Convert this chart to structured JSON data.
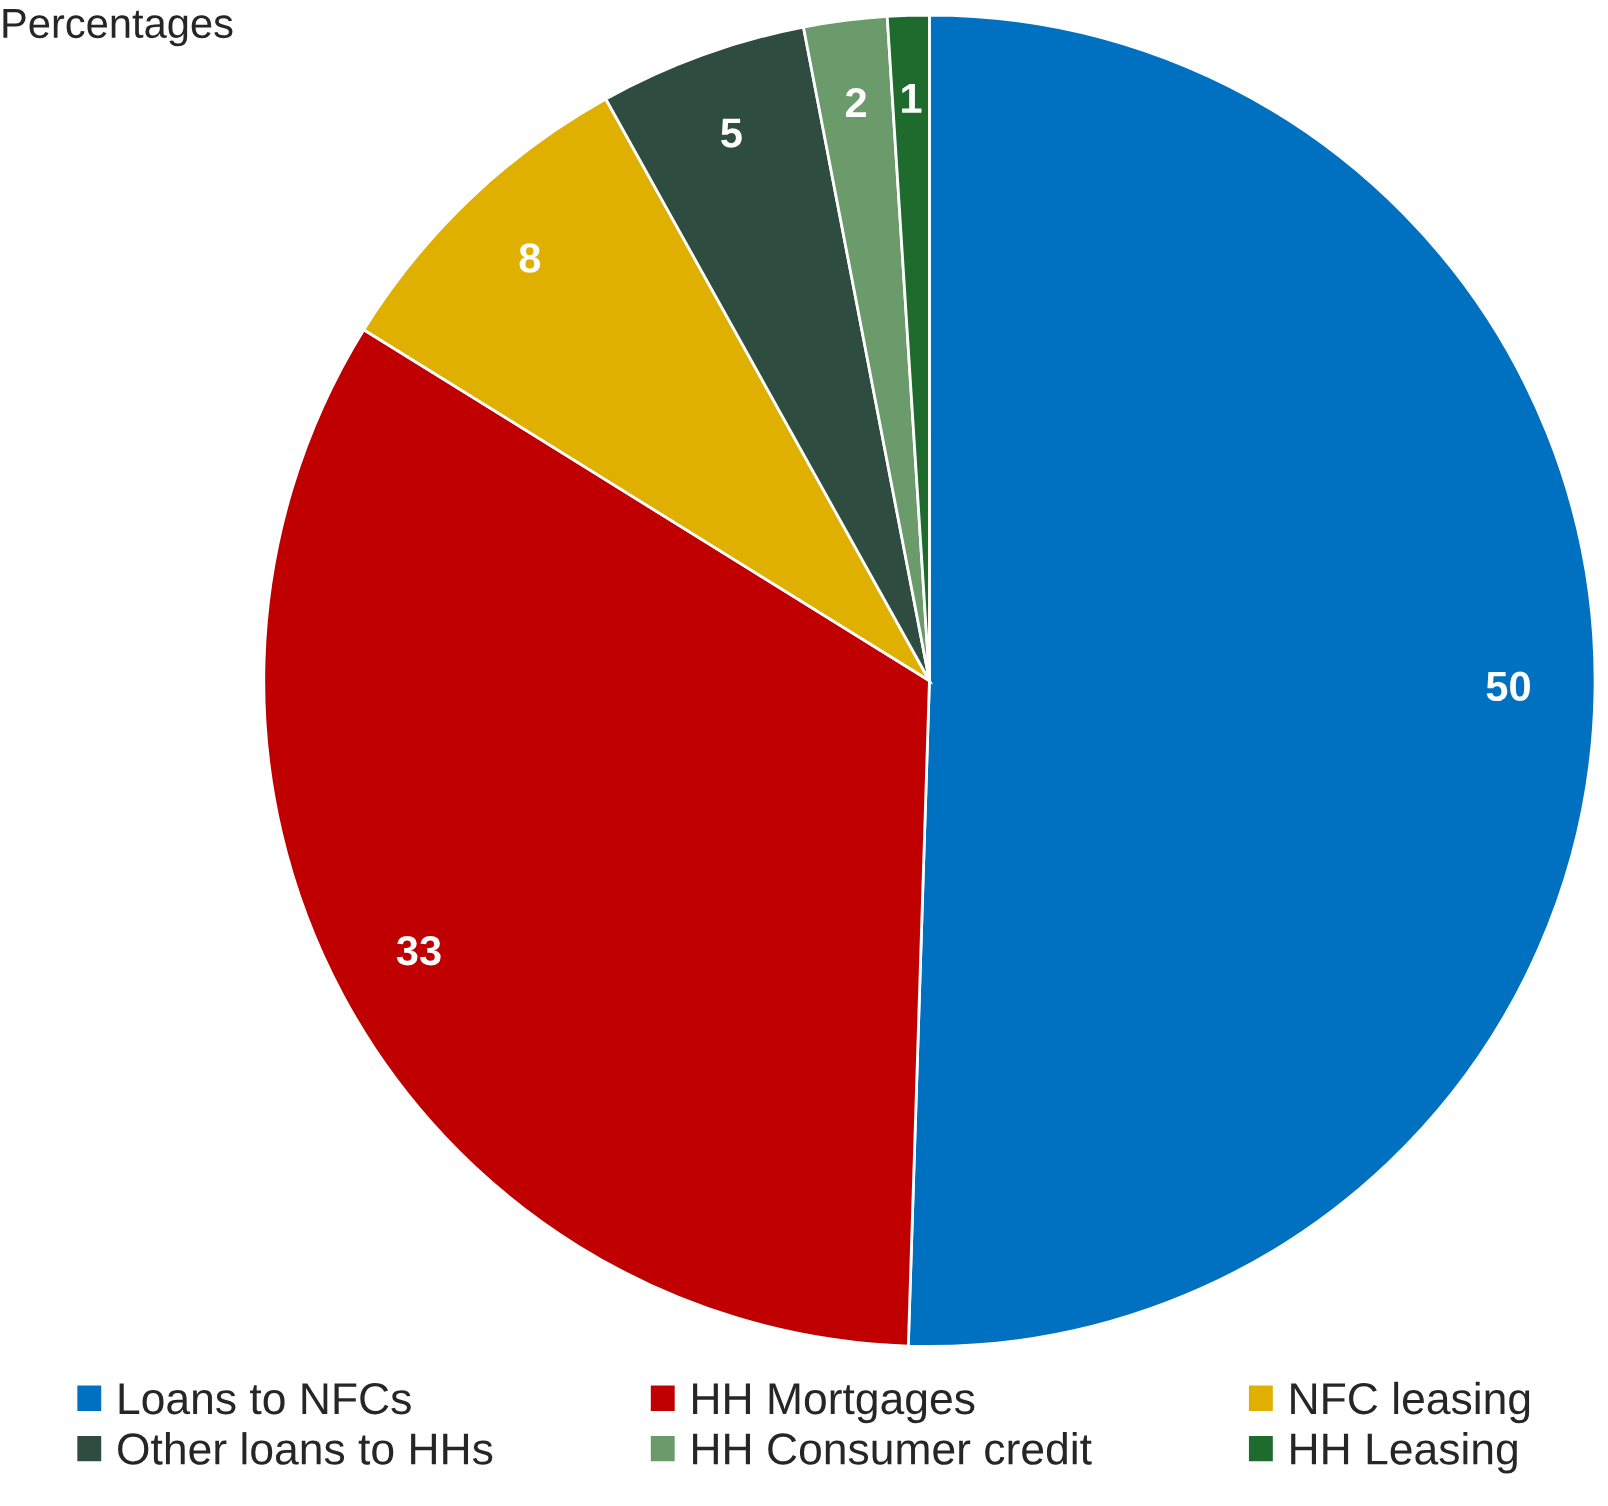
{
  "chart_data": {
    "type": "pie",
    "title": "Percentages",
    "categories": [
      "Loans to NFCs",
      "HH Mortgages",
      "NFC leasing",
      "Other loans to HHs",
      "HH Consumer credit",
      "HH Leasing"
    ],
    "values": [
      50,
      33,
      8,
      5,
      2,
      1
    ],
    "colors": [
      "#0070c0",
      "#c00000",
      "#e0b000",
      "#2e4d40",
      "#6b9a6b",
      "#1f6b2e"
    ],
    "data_labels": true,
    "legend": "bottom"
  }
}
